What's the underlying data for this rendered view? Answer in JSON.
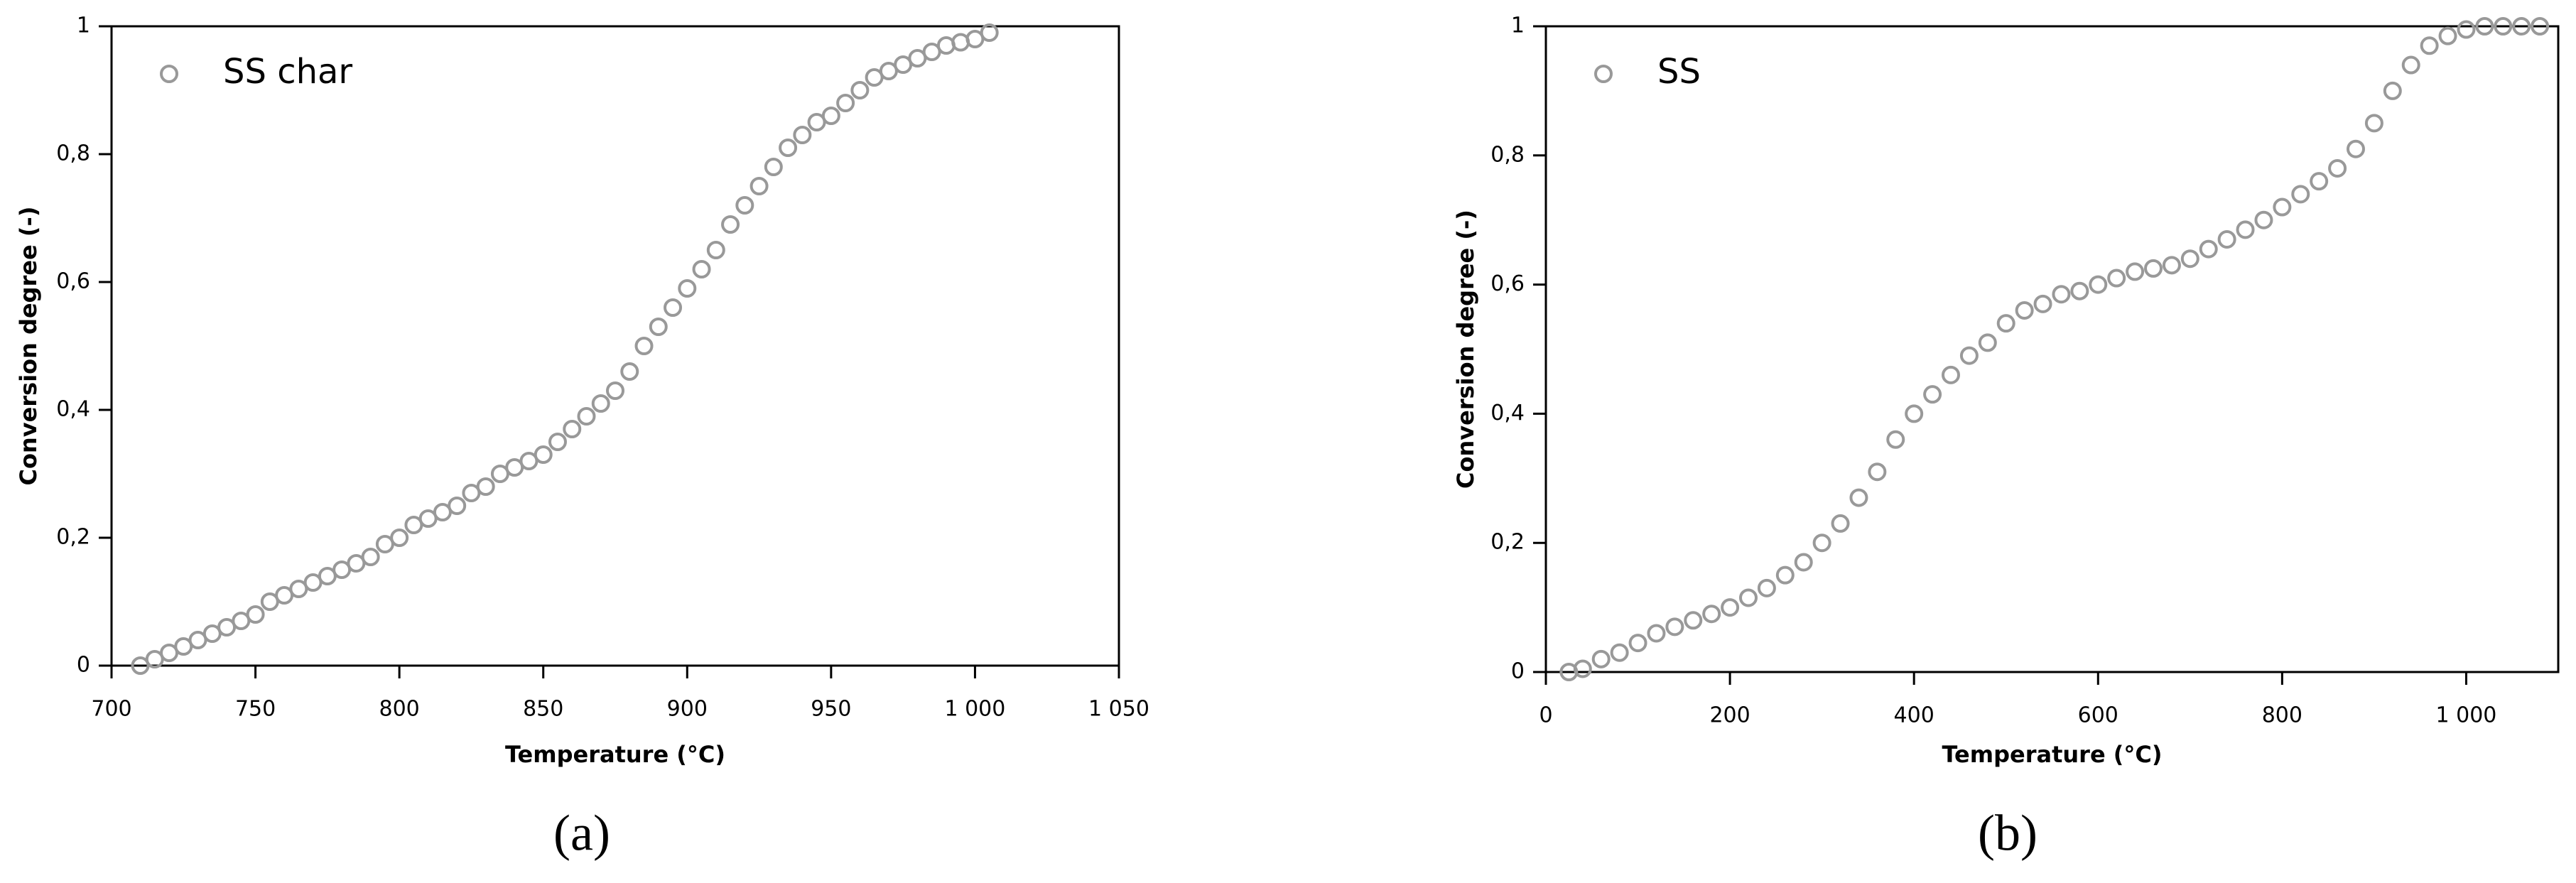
{
  "chart_data": [
    {
      "type": "scatter",
      "panel_label": "(a)",
      "x_label": "Temperature (°C)",
      "y_label": "Conversion degree (-)",
      "xlim": [
        700,
        1050
      ],
      "ylim": [
        0,
        1
      ],
      "xticks": [
        700,
        750,
        800,
        850,
        900,
        950,
        {
          "value": 1000,
          "label": "1 000"
        },
        {
          "value": 1050,
          "label": "1 050"
        }
      ],
      "yticks": [
        0,
        {
          "value": 0.2,
          "label": "0,2"
        },
        {
          "value": 0.4,
          "label": "0,4"
        },
        {
          "value": 0.6,
          "label": "0,6"
        },
        {
          "value": 0.8,
          "label": "0,8"
        },
        1
      ],
      "series": [
        {
          "name": "SS char",
          "color": "#999999",
          "x": [
            710,
            715,
            720,
            725,
            730,
            735,
            740,
            745,
            750,
            755,
            760,
            765,
            770,
            775,
            780,
            785,
            790,
            795,
            800,
            805,
            810,
            815,
            820,
            825,
            830,
            835,
            840,
            845,
            850,
            855,
            860,
            865,
            870,
            875,
            880,
            885,
            890,
            895,
            900,
            905,
            910,
            915,
            920,
            925,
            930,
            935,
            940,
            945,
            950,
            955,
            960,
            965,
            970,
            975,
            980,
            985,
            990,
            995,
            1000,
            1005
          ],
          "values": [
            0,
            0.01,
            0.02,
            0.03,
            0.04,
            0.05,
            0.06,
            0.07,
            0.08,
            0.1,
            0.11,
            0.12,
            0.13,
            0.14,
            0.15,
            0.16,
            0.17,
            0.19,
            0.2,
            0.22,
            0.23,
            0.24,
            0.25,
            0.27,
            0.28,
            0.3,
            0.31,
            0.32,
            0.33,
            0.35,
            0.37,
            0.39,
            0.41,
            0.43,
            0.46,
            0.5,
            0.53,
            0.56,
            0.59,
            0.62,
            0.65,
            0.69,
            0.72,
            0.75,
            0.78,
            0.81,
            0.83,
            0.85,
            0.86,
            0.88,
            0.9,
            0.92,
            0.93,
            0.94,
            0.95,
            0.96,
            0.97,
            0.975,
            0.98,
            0.99
          ]
        }
      ]
    },
    {
      "type": "scatter",
      "panel_label": "(b)",
      "x_label": "Temperature (°C)",
      "y_label": "Conversion degree (-)",
      "xlim": [
        0,
        1100
      ],
      "ylim": [
        0,
        1
      ],
      "xticks": [
        0,
        200,
        400,
        600,
        800,
        {
          "value": 1000,
          "label": "1 000"
        }
      ],
      "yticks": [
        0,
        {
          "value": 0.2,
          "label": "0,2"
        },
        {
          "value": 0.4,
          "label": "0,4"
        },
        {
          "value": 0.6,
          "label": "0,6"
        },
        {
          "value": 0.8,
          "label": "0,8"
        },
        1
      ],
      "series": [
        {
          "name": "SS",
          "color": "#999999",
          "x": [
            25,
            40,
            60,
            80,
            100,
            120,
            140,
            160,
            180,
            200,
            220,
            240,
            260,
            280,
            300,
            320,
            340,
            360,
            380,
            400,
            420,
            440,
            460,
            480,
            500,
            520,
            540,
            560,
            580,
            600,
            620,
            640,
            660,
            680,
            700,
            720,
            740,
            760,
            780,
            800,
            820,
            840,
            860,
            880,
            900,
            920,
            940,
            960,
            980,
            1000,
            1020,
            1040,
            1060,
            1080
          ],
          "values": [
            0,
            0.005,
            0.02,
            0.03,
            0.045,
            0.06,
            0.07,
            0.08,
            0.09,
            0.1,
            0.115,
            0.13,
            0.15,
            0.17,
            0.2,
            0.23,
            0.27,
            0.31,
            0.36,
            0.4,
            0.43,
            0.46,
            0.49,
            0.51,
            0.54,
            0.56,
            0.57,
            0.585,
            0.59,
            0.6,
            0.61,
            0.62,
            0.625,
            0.63,
            0.64,
            0.655,
            0.67,
            0.685,
            0.7,
            0.72,
            0.74,
            0.76,
            0.78,
            0.81,
            0.85,
            0.9,
            0.94,
            0.97,
            0.985,
            0.995,
            1,
            1,
            1,
            1
          ]
        }
      ]
    }
  ]
}
